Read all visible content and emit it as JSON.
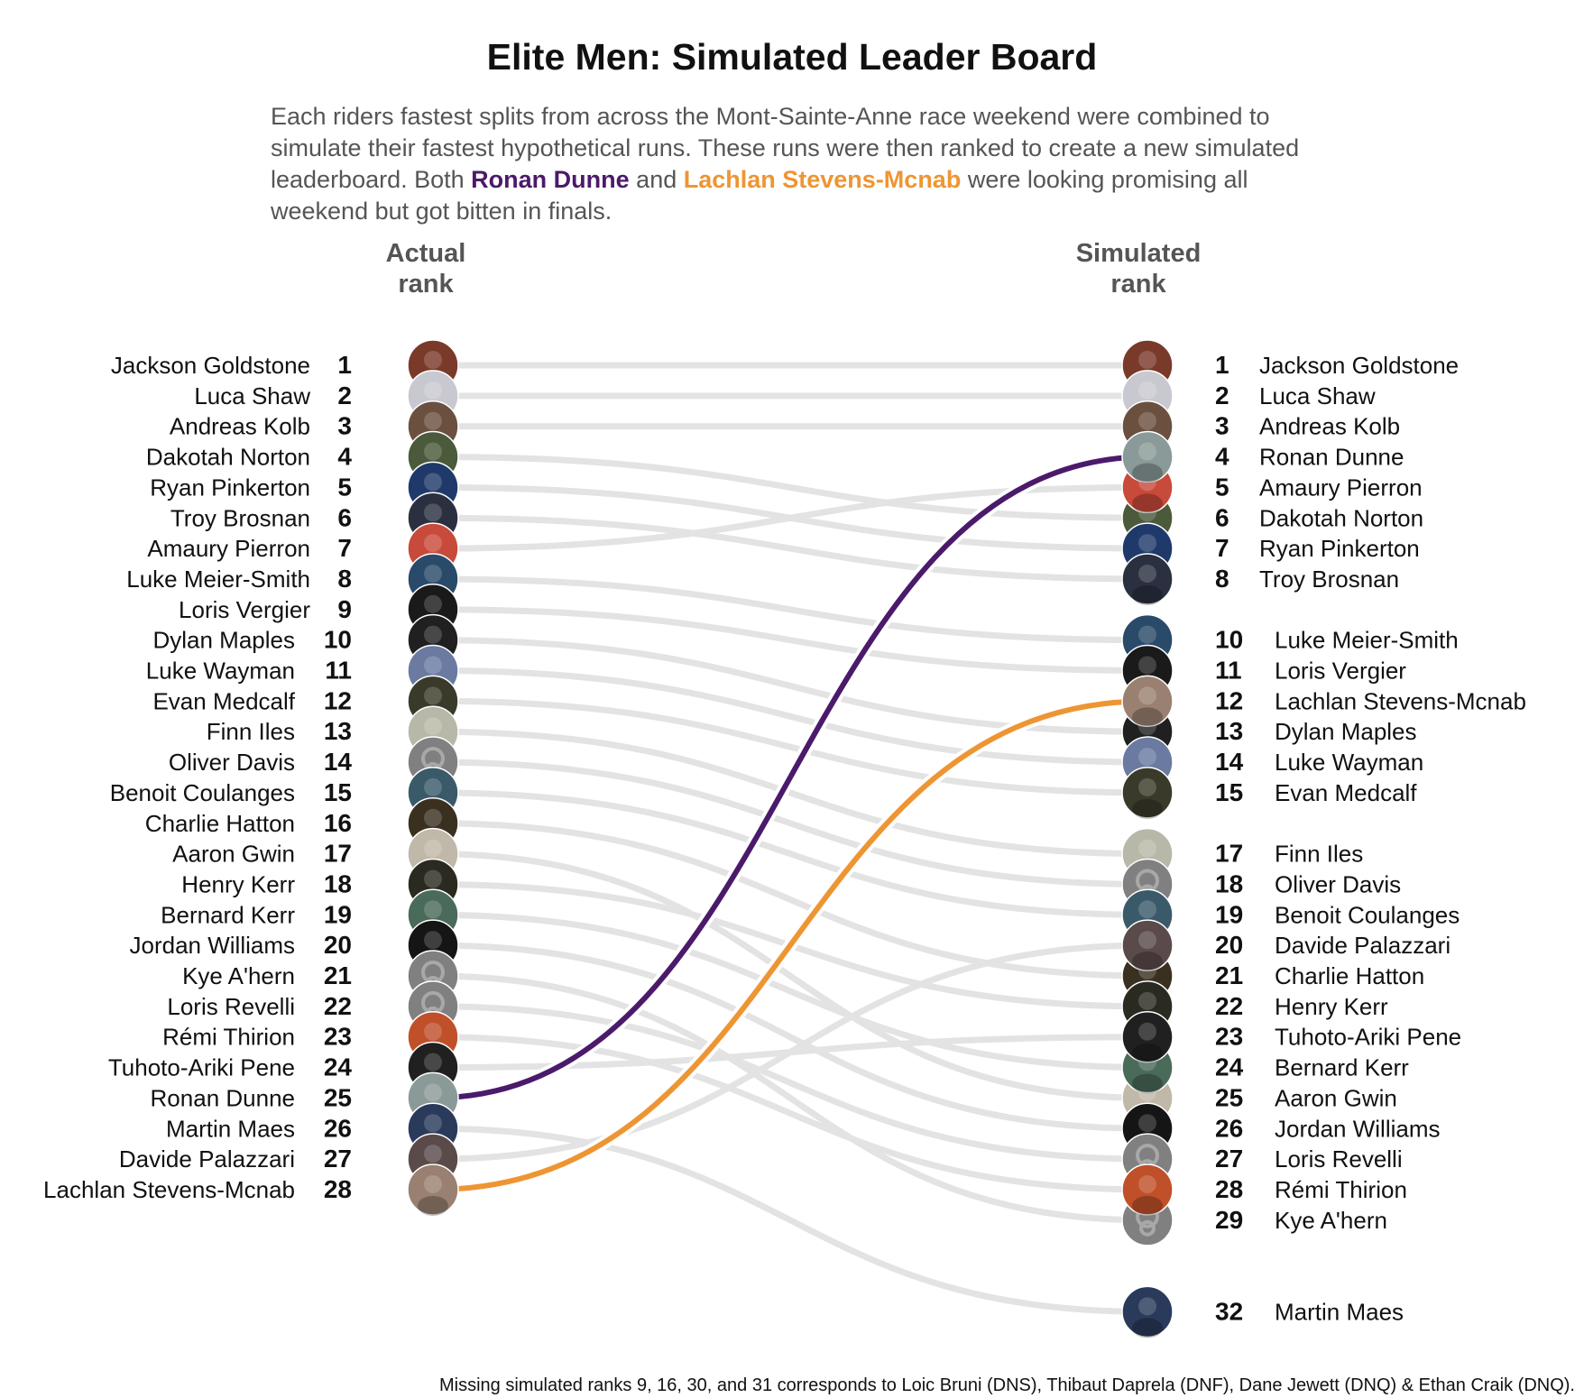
{
  "header": {
    "title": "Elite Men: Simulated Leader Board",
    "subtitle_pre": "Each riders fastest splits from across the Mont-Sainte-Anne race weekend were combined to simulate their fastest hypothetical runs. These runs were then ranked to create a new simulated leaderboard. Both ",
    "highlight_1": "Ronan Dunne",
    "subtitle_mid": " and ",
    "highlight_2": "Lachlan Stevens-Mcnab",
    "subtitle_post": " were looking promising all weekend but got bitten in finals.",
    "left_heading_1": "Actual",
    "left_heading_2": "rank",
    "right_heading_1": "Simulated",
    "right_heading_2": "rank"
  },
  "footnote": "Missing simulated ranks 9, 16, 30, and 31 corresponds to Loic Bruni (DNS), Thibaut Daprela (DNF), Dane Jewett (DNQ) & Ethan Craik (DNQ).",
  "colors": {
    "line_default": "#e3e3e3",
    "highlight_1": "#4b1a6b",
    "highlight_2": "#ee9533",
    "rank_number": "#111111",
    "name_text": "#111111",
    "avatar_placeholder": "#808080"
  },
  "chart_data": {
    "type": "bump",
    "x": [
      "Actual rank",
      "Simulated rank"
    ],
    "highlighted": [
      "Ronan Dunne",
      "Lachlan Stevens-Mcnab"
    ],
    "riders": [
      {
        "name": "Jackson Goldstone",
        "actual": 1,
        "simulated": 1,
        "photo": false,
        "tone": "#7a3a2a"
      },
      {
        "name": "Luca Shaw",
        "actual": 2,
        "simulated": 2,
        "photo": false,
        "tone": "#c8c8d0"
      },
      {
        "name": "Andreas Kolb",
        "actual": 3,
        "simulated": 3,
        "photo": false,
        "tone": "#6b5040"
      },
      {
        "name": "Dakotah Norton",
        "actual": 4,
        "simulated": 6,
        "photo": false,
        "tone": "#4a5a3a"
      },
      {
        "name": "Ryan Pinkerton",
        "actual": 5,
        "simulated": 7,
        "photo": false,
        "tone": "#1f3a6a"
      },
      {
        "name": "Troy Brosnan",
        "actual": 6,
        "simulated": 8,
        "photo": false,
        "tone": "#2a3040"
      },
      {
        "name": "Amaury Pierron",
        "actual": 7,
        "simulated": 5,
        "photo": false,
        "tone": "#c84a3a"
      },
      {
        "name": "Luke Meier-Smith",
        "actual": 8,
        "simulated": 10,
        "photo": false,
        "tone": "#2a4a6a"
      },
      {
        "name": "Loris Vergier",
        "actual": 9,
        "simulated": 11,
        "photo": false,
        "tone": "#1a1a1a"
      },
      {
        "name": "Dylan Maples",
        "actual": 10,
        "simulated": 13,
        "photo": false,
        "tone": "#202020"
      },
      {
        "name": "Luke Wayman",
        "actual": 11,
        "simulated": 14,
        "photo": false,
        "tone": "#6a7aa0"
      },
      {
        "name": "Evan Medcalf",
        "actual": 12,
        "simulated": 15,
        "photo": false,
        "tone": "#3a3a2a"
      },
      {
        "name": "Finn Iles",
        "actual": 13,
        "simulated": 17,
        "photo": false,
        "tone": "#b8b8a8"
      },
      {
        "name": "Oliver Davis",
        "actual": 14,
        "simulated": 18,
        "photo": true,
        "tone": "#808080"
      },
      {
        "name": "Benoit Coulanges",
        "actual": 15,
        "simulated": 19,
        "photo": false,
        "tone": "#3a5a6a"
      },
      {
        "name": "Charlie Hatton",
        "actual": 16,
        "simulated": 21,
        "photo": false,
        "tone": "#3a3020"
      },
      {
        "name": "Aaron Gwin",
        "actual": 17,
        "simulated": 25,
        "photo": false,
        "tone": "#c0b8a8"
      },
      {
        "name": "Henry Kerr",
        "actual": 18,
        "simulated": 22,
        "photo": false,
        "tone": "#2a2a20"
      },
      {
        "name": "Bernard Kerr",
        "actual": 19,
        "simulated": 24,
        "photo": false,
        "tone": "#4a6a5a"
      },
      {
        "name": "Jordan Williams",
        "actual": 20,
        "simulated": 26,
        "photo": false,
        "tone": "#151515"
      },
      {
        "name": "Kye A'hern",
        "actual": 21,
        "simulated": 29,
        "photo": true,
        "tone": "#808080"
      },
      {
        "name": "Loris Revelli",
        "actual": 22,
        "simulated": 27,
        "photo": true,
        "tone": "#808080"
      },
      {
        "name": "Rémi Thirion",
        "actual": 23,
        "simulated": 28,
        "photo": false,
        "tone": "#c0502a"
      },
      {
        "name": "Tuhoto-Ariki Pene",
        "actual": 24,
        "simulated": 23,
        "photo": false,
        "tone": "#202020"
      },
      {
        "name": "Ronan Dunne",
        "actual": 25,
        "simulated": 4,
        "photo": false,
        "tone": "#8a9a98"
      },
      {
        "name": "Martin Maes",
        "actual": 26,
        "simulated": 32,
        "photo": false,
        "tone": "#2a3a5a"
      },
      {
        "name": "Davide Palazzari",
        "actual": 27,
        "simulated": 20,
        "photo": false,
        "tone": "#5a4a4a"
      },
      {
        "name": "Lachlan Stevens-Mcnab",
        "actual": 28,
        "simulated": 12,
        "photo": false,
        "tone": "#9a8070"
      }
    ]
  }
}
